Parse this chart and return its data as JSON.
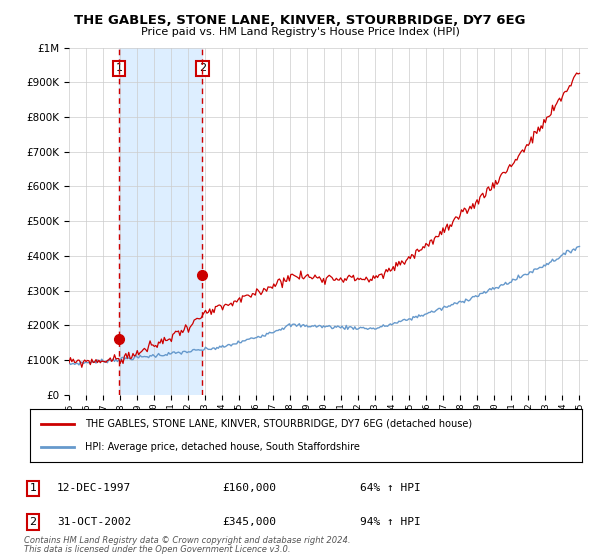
{
  "title": "THE GABLES, STONE LANE, KINVER, STOURBRIDGE, DY7 6EG",
  "subtitle": "Price paid vs. HM Land Registry's House Price Index (HPI)",
  "red_line_label": "THE GABLES, STONE LANE, KINVER, STOURBRIDGE, DY7 6EG (detached house)",
  "blue_line_label": "HPI: Average price, detached house, South Staffordshire",
  "purchase1_date_num": 1997.95,
  "purchase1_price": 160000,
  "purchase1_label": "1",
  "purchase1_text": "12-DEC-1997",
  "purchase1_pct": "64% ↑ HPI",
  "purchase2_date_num": 2002.83,
  "purchase2_price": 345000,
  "purchase2_label": "2",
  "purchase2_text": "31-OCT-2002",
  "purchase2_pct": "94% ↑ HPI",
  "footer1": "Contains HM Land Registry data © Crown copyright and database right 2024.",
  "footer2": "This data is licensed under the Open Government Licence v3.0.",
  "ylim": [
    0,
    1000000
  ],
  "xlim_start": 1995.0,
  "xlim_end": 2025.5,
  "red_color": "#cc0000",
  "blue_color": "#6699cc",
  "shade_color": "#ddeeff",
  "marker_color": "#cc0000",
  "vline_color": "#cc0000",
  "background_color": "#ffffff",
  "grid_color": "#cccccc"
}
